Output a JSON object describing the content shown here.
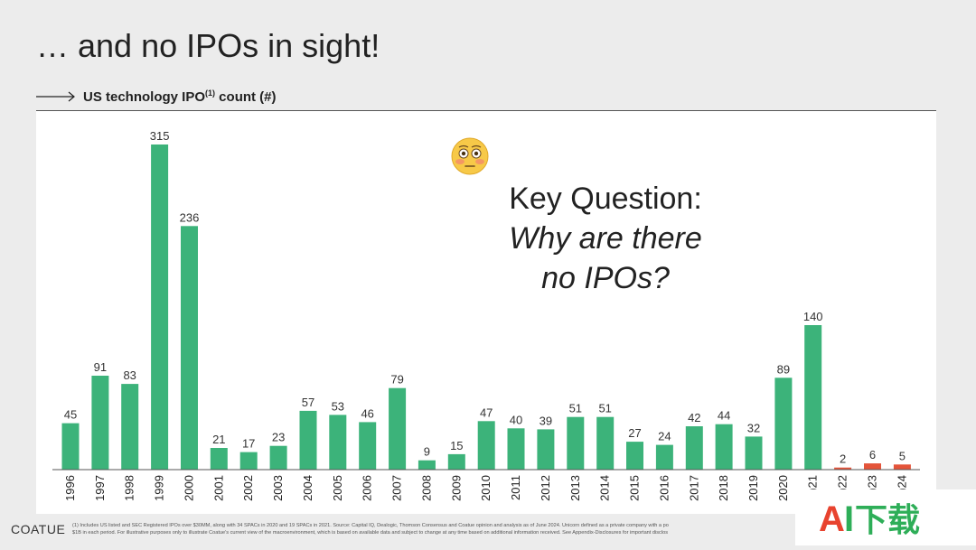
{
  "slide": {
    "title": "… and no IPOs in sight!",
    "subtitle_main": "US technology IPO",
    "subtitle_sup": "(1)",
    "subtitle_end": " count (#)",
    "key_question_line1": "Key Question:",
    "key_question_line2": "Why are there",
    "key_question_line3": "no IPOs?",
    "emoji": "flushed-face-icon",
    "footer_logo": "COATUE",
    "footnote_line1": "(1) Includes US listed and SEC Registered IPOs over $30MM, along with 34 SPACs in 2020 and 19 SPACs in 2021. Source: Capital IQ, Dealogic, Thomson Consensus and Coatue opinion and analysis as of June 2024. Unicorn defined as a private company with a po",
    "footnote_line2": "$1B in each period. For illustrative purposes only to illustrate Coatue's current view of the macroenvironment, which is based on available data and subject to change at any time based on additional information received. See Appendix-Disclosures for important disclos",
    "watermark": "AI下载"
  },
  "colors": {
    "green": "#3cb37a",
    "red": "#e4543a",
    "axis": "#555555"
  },
  "chart_data": {
    "type": "bar",
    "title": "US technology IPO(1) count (#)",
    "categories": [
      "1996",
      "1997",
      "1998",
      "1999",
      "2000",
      "2001",
      "2002",
      "2003",
      "2004",
      "2005",
      "2006",
      "2007",
      "2008",
      "2009",
      "2010",
      "2011",
      "2012",
      "2013",
      "2014",
      "2015",
      "2016",
      "2017",
      "2018",
      "2019",
      "2020",
      "2021",
      "2022",
      "2023",
      "2024"
    ],
    "tick_labels": [
      "1996",
      "1997",
      "1998",
      "1999",
      "2000",
      "2001",
      "2002",
      "2003",
      "2004",
      "2005",
      "2006",
      "2007",
      "2008",
      "2009",
      "2010",
      "2011",
      "2012",
      "2013",
      "2014",
      "2015",
      "2016",
      "2017",
      "2018",
      "2019",
      "2020",
      ")21",
      ")22",
      ")23",
      ")24"
    ],
    "values": [
      45,
      91,
      83,
      315,
      236,
      21,
      17,
      23,
      57,
      53,
      46,
      79,
      9,
      15,
      47,
      40,
      39,
      51,
      51,
      27,
      24,
      42,
      44,
      32,
      89,
      140,
      2,
      6,
      5
    ],
    "colors": [
      "green",
      "green",
      "green",
      "green",
      "green",
      "green",
      "green",
      "green",
      "green",
      "green",
      "green",
      "green",
      "green",
      "green",
      "green",
      "green",
      "green",
      "green",
      "green",
      "green",
      "green",
      "green",
      "green",
      "green",
      "green",
      "green",
      "red",
      "red",
      "red"
    ],
    "ylim": [
      0,
      315
    ],
    "xlabel": "",
    "ylabel": "",
    "grid": false,
    "legend": "none"
  }
}
